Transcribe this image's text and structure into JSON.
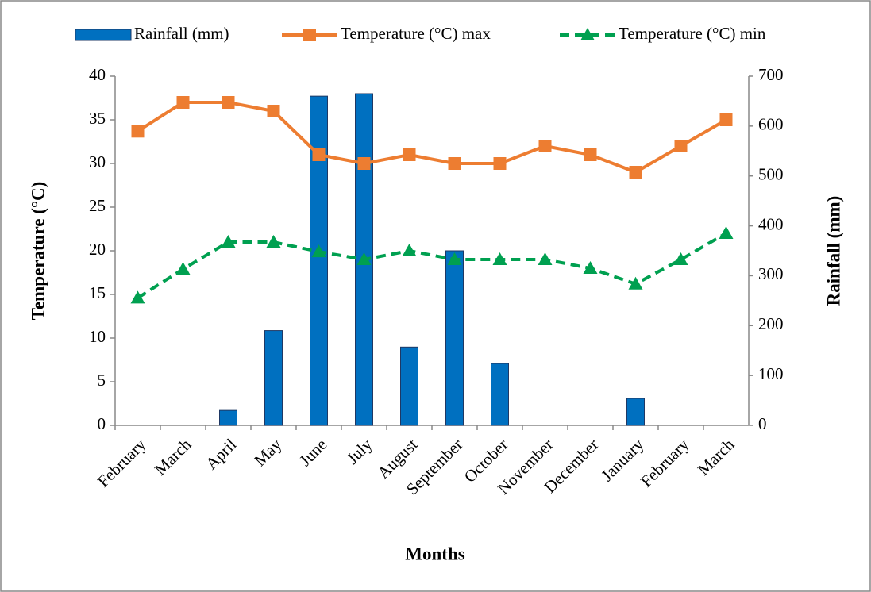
{
  "chart_data": {
    "type": "combo",
    "categories": [
      "February",
      "March",
      "April",
      "May",
      "June",
      "July",
      "August",
      "September",
      "October",
      "November",
      "December",
      "January",
      "February",
      "March"
    ],
    "series": [
      {
        "name": "Rainfall (mm)",
        "type": "bar",
        "axis": "y2",
        "color": "#0070c0",
        "values": [
          0,
          0,
          30,
          190,
          660,
          665,
          157,
          350,
          124,
          0,
          0,
          54,
          0,
          0
        ]
      },
      {
        "name": "Temperature (°C) max",
        "type": "line",
        "marker": "square",
        "color": "#ed7d31",
        "values": [
          33.7,
          37,
          37,
          36,
          31,
          30,
          31,
          30,
          30,
          32,
          31,
          29,
          32,
          35
        ]
      },
      {
        "name": "Temperature (°C) min",
        "type": "line",
        "marker": "triangle",
        "dashed": true,
        "color": "#00a050",
        "values": [
          14.6,
          17.9,
          21,
          21,
          19.9,
          19,
          20,
          19,
          19,
          19,
          18,
          16.2,
          19,
          22
        ]
      }
    ],
    "xlabel": "Months",
    "ylabel": "Temperature (°C)",
    "y2label": "Rainfall (mm)",
    "ylim": [
      0,
      40
    ],
    "yticks": [
      0,
      5,
      10,
      15,
      20,
      25,
      30,
      35,
      40
    ],
    "y2lim": [
      0,
      700
    ],
    "y2ticks": [
      0,
      100,
      200,
      300,
      400,
      500,
      600,
      700
    ],
    "legend": "top",
    "grid": false
  }
}
